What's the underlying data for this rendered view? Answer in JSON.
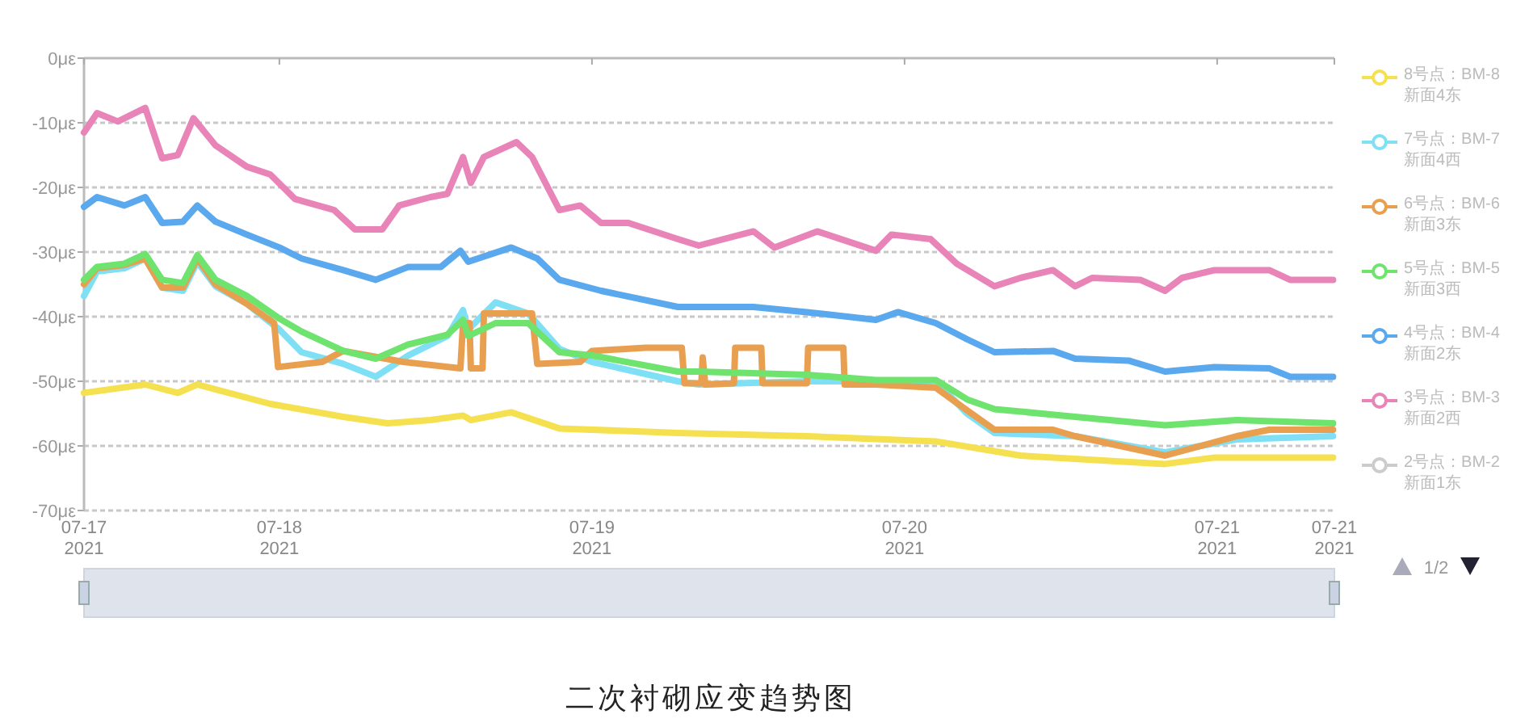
{
  "chart_data": {
    "type": "line",
    "title": "二次衬砌应变趋势图",
    "xlim": [
      "2021-07-17T09:00",
      "2021-07-21T09:00"
    ],
    "xticks": [
      {
        "value": "2021-07-17T09:00",
        "label": "07-17 2021"
      },
      {
        "value": "2021-07-18T00:00",
        "label": "07-18 2021"
      },
      {
        "value": "2021-07-19T00:00",
        "label": "07-19 2021"
      },
      {
        "value": "2021-07-20T00:00",
        "label": "07-20 2021"
      },
      {
        "value": "2021-07-21T00:00",
        "label": "07-21 2021"
      },
      {
        "value": "2021-07-21T09:00",
        "label": "07-21 2021"
      }
    ],
    "ylim": [
      -70,
      0
    ],
    "yticks": [
      {
        "value": 0,
        "label": "0με"
      },
      {
        "value": -10,
        "label": "-10με"
      },
      {
        "value": -20,
        "label": "-20με"
      },
      {
        "value": -30,
        "label": "-30με"
      },
      {
        "value": -40,
        "label": "-40με"
      },
      {
        "value": -50,
        "label": "-50με"
      },
      {
        "value": -60,
        "label": "-60με"
      },
      {
        "value": -70,
        "label": "-70με"
      }
    ],
    "grid": "y",
    "legend": "right",
    "annotations": [
      "1/2"
    ],
    "series": [
      {
        "name": "8号点：BM-8 新面4东",
        "color": "#f5e050",
        "x": [
          "2021-07-17T09:00",
          "2021-07-17T13:42",
          "2021-07-17T16:12",
          "2021-07-17T17:42",
          "2021-07-17T23:18",
          "2021-07-18T04:54",
          "2021-07-18T08:18",
          "2021-07-18T11:36",
          "2021-07-18T14:06",
          "2021-07-18T14:42",
          "2021-07-18T17:48",
          "2021-07-18T21:30",
          "2021-07-19T06:36",
          "2021-07-19T16:30",
          "2021-07-20T02:24",
          "2021-07-20T08:54",
          "2021-07-20T20:00",
          "2021-07-20T23:48",
          "2021-07-21T08:54"
        ],
        "values": [
          -51.8,
          -50.5,
          -51.8,
          -50.5,
          -53.5,
          -55.5,
          -56.5,
          -56,
          -55.3,
          -56,
          -54.8,
          -57.3,
          -58,
          -58.5,
          -59.3,
          -61.5,
          -62.8,
          -61.8,
          -61.8
        ]
      },
      {
        "name": "7号点：BM-7 新面4西",
        "color": "#7fe0f5",
        "x": [
          "2021-07-17T09:00",
          "2021-07-17T10:00",
          "2021-07-17T12:06",
          "2021-07-17T13:42",
          "2021-07-17T15:00",
          "2021-07-17T16:36",
          "2021-07-17T17:42",
          "2021-07-17T19:06",
          "2021-07-17T21:30",
          "2021-07-18T00:00",
          "2021-07-18T01:42",
          "2021-07-18T04:54",
          "2021-07-18T07:24",
          "2021-07-18T09:54",
          "2021-07-18T12:54",
          "2021-07-18T14:06",
          "2021-07-18T14:30",
          "2021-07-18T16:36",
          "2021-07-18T19:06",
          "2021-07-18T21:30",
          "2021-07-19T00:00",
          "2021-07-19T06:36",
          "2021-07-19T08:12",
          "2021-07-19T16:30",
          "2021-07-19T21:48",
          "2021-07-20T02:24",
          "2021-07-20T04:48",
          "2021-07-20T06:54",
          "2021-07-20T13:06",
          "2021-07-20T20:00",
          "2021-07-21T01:30",
          "2021-07-21T08:54"
        ],
        "values": [
          -36.8,
          -33,
          -32.5,
          -31,
          -35.5,
          -36,
          -31.5,
          -35.3,
          -38,
          -42,
          -45.5,
          -47.3,
          -49.3,
          -46,
          -43,
          -39,
          -42,
          -37.8,
          -39.5,
          -45,
          -47,
          -50,
          -50.5,
          -50,
          -50,
          -50,
          -55,
          -58,
          -58.5,
          -61,
          -59,
          -58.5
        ]
      },
      {
        "name": "6号点：BM-6 新面3东",
        "color": "#e8a050",
        "x": [
          "2021-07-17T09:00",
          "2021-07-17T10:00",
          "2021-07-17T12:06",
          "2021-07-17T13:42",
          "2021-07-17T15:00",
          "2021-07-17T16:36",
          "2021-07-17T17:42",
          "2021-07-17T19:06",
          "2021-07-17T21:30",
          "2021-07-17T23:36",
          "2021-07-17T23:54",
          "2021-07-18T03:18",
          "2021-07-18T04:54",
          "2021-07-18T09:30",
          "2021-07-18T13:54",
          "2021-07-18T14:06",
          "2021-07-18T14:36",
          "2021-07-18T14:42",
          "2021-07-18T15:36",
          "2021-07-18T15:42",
          "2021-07-18T19:24",
          "2021-07-18T19:48",
          "2021-07-18T23:06",
          "2021-07-19T00:00",
          "2021-07-19T04:06",
          "2021-07-19T06:54",
          "2021-07-19T07:06",
          "2021-07-19T08:24",
          "2021-07-19T08:30",
          "2021-07-19T08:42",
          "2021-07-19T10:54",
          "2021-07-19T11:00",
          "2021-07-19T13:00",
          "2021-07-19T13:06",
          "2021-07-19T16:30",
          "2021-07-19T16:36",
          "2021-07-19T19:18",
          "2021-07-19T19:24",
          "2021-07-19T21:48",
          "2021-07-20T02:24",
          "2021-07-20T04:48",
          "2021-07-20T06:54",
          "2021-07-20T11:24",
          "2021-07-20T13:06",
          "2021-07-20T20:00",
          "2021-07-21T01:30",
          "2021-07-21T04:00",
          "2021-07-21T08:54"
        ],
        "values": [
          -35,
          -32.5,
          -32,
          -31,
          -35.5,
          -35.5,
          -31,
          -35,
          -38,
          -41,
          -47.8,
          -47,
          -45.3,
          -47,
          -48,
          -41,
          -41,
          -48,
          -48,
          -39.5,
          -39.5,
          -47.3,
          -47,
          -45.3,
          -44.8,
          -44.8,
          -50.3,
          -50.3,
          -46.3,
          -50.5,
          -50.3,
          -44.8,
          -44.8,
          -50.3,
          -50.3,
          -44.8,
          -44.8,
          -50.5,
          -50.5,
          -51,
          -54.5,
          -57.5,
          -57.5,
          -58.5,
          -61.5,
          -58.5,
          -57.5,
          -57.5
        ]
      },
      {
        "name": "5号点：BM-5 新面3西",
        "color": "#6ee36e",
        "x": [
          "2021-07-17T09:00",
          "2021-07-17T10:00",
          "2021-07-17T12:06",
          "2021-07-17T13:42",
          "2021-07-17T15:00",
          "2021-07-17T16:36",
          "2021-07-17T17:42",
          "2021-07-17T19:06",
          "2021-07-17T21:30",
          "2021-07-18T00:00",
          "2021-07-18T01:42",
          "2021-07-18T04:54",
          "2021-07-18T07:24",
          "2021-07-18T09:54",
          "2021-07-18T12:54",
          "2021-07-18T14:06",
          "2021-07-18T14:30",
          "2021-07-18T16:36",
          "2021-07-18T19:06",
          "2021-07-18T21:30",
          "2021-07-19T00:00",
          "2021-07-19T06:36",
          "2021-07-19T08:12",
          "2021-07-19T16:30",
          "2021-07-19T21:48",
          "2021-07-20T02:24",
          "2021-07-20T04:48",
          "2021-07-20T06:54",
          "2021-07-20T13:06",
          "2021-07-20T20:00",
          "2021-07-21T01:30",
          "2021-07-21T08:54"
        ],
        "values": [
          -34.3,
          -32.3,
          -31.8,
          -30.3,
          -34.3,
          -34.8,
          -30.5,
          -34.3,
          -36.8,
          -40.3,
          -42.3,
          -45.3,
          -46.5,
          -44.3,
          -42.8,
          -40.5,
          -43,
          -41,
          -41,
          -45.5,
          -46,
          -48.5,
          -48.5,
          -49,
          -49.8,
          -49.8,
          -52.8,
          -54.3,
          -55.5,
          -56.8,
          -56,
          -56.5
        ]
      },
      {
        "name": "4号点：BM-4 新面2东",
        "color": "#5aa8ee",
        "x": [
          "2021-07-17T09:00",
          "2021-07-17T10:00",
          "2021-07-17T12:06",
          "2021-07-17T13:42",
          "2021-07-17T15:00",
          "2021-07-17T16:36",
          "2021-07-17T17:42",
          "2021-07-17T19:06",
          "2021-07-17T21:30",
          "2021-07-18T00:00",
          "2021-07-18T01:42",
          "2021-07-18T04:54",
          "2021-07-18T07:24",
          "2021-07-18T09:54",
          "2021-07-18T12:24",
          "2021-07-18T13:54",
          "2021-07-18T14:30",
          "2021-07-18T17:48",
          "2021-07-18T19:48",
          "2021-07-18T21:30",
          "2021-07-19T00:42",
          "2021-07-19T06:36",
          "2021-07-19T08:12",
          "2021-07-19T12:24",
          "2021-07-19T16:30",
          "2021-07-19T21:48",
          "2021-07-19T23:30",
          "2021-07-20T02:24",
          "2021-07-20T04:48",
          "2021-07-20T06:54",
          "2021-07-20T11:24",
          "2021-07-20T13:06",
          "2021-07-20T17:12",
          "2021-07-20T20:00",
          "2021-07-20T23:48",
          "2021-07-21T04:00",
          "2021-07-21T05:36",
          "2021-07-21T08:54"
        ],
        "values": [
          -23,
          -21.5,
          -22.8,
          -21.5,
          -25.5,
          -25.3,
          -22.8,
          -25.3,
          -27.3,
          -29.3,
          -31,
          -32.8,
          -34.3,
          -32.3,
          -32.3,
          -29.8,
          -31.5,
          -29.3,
          -31,
          -34.3,
          -36,
          -38.5,
          -38.5,
          -38.5,
          -39.3,
          -40.5,
          -39.3,
          -41,
          -43.5,
          -45.5,
          -45.3,
          -46.5,
          -46.8,
          -48.5,
          -47.8,
          -48,
          -49.3,
          -49.3
        ]
      },
      {
        "name": "3号点：BM-3 新面2西",
        "color": "#e884b8",
        "x": [
          "2021-07-17T09:00",
          "2021-07-17T10:00",
          "2021-07-17T11:36",
          "2021-07-17T13:42",
          "2021-07-17T15:00",
          "2021-07-17T16:12",
          "2021-07-17T17:24",
          "2021-07-17T19:06",
          "2021-07-17T21:30",
          "2021-07-17T23:18",
          "2021-07-18T01:12",
          "2021-07-18T04:12",
          "2021-07-18T05:48",
          "2021-07-18T07:54",
          "2021-07-18T09:12",
          "2021-07-18T11:36",
          "2021-07-18T12:54",
          "2021-07-18T14:06",
          "2021-07-18T14:42",
          "2021-07-18T15:42",
          "2021-07-18T18:12",
          "2021-07-18T19:24",
          "2021-07-18T21:30",
          "2021-07-18T23:06",
          "2021-07-19T00:42",
          "2021-07-19T02:48",
          "2021-07-19T06:36",
          "2021-07-19T08:12",
          "2021-07-19T12:24",
          "2021-07-19T14:00",
          "2021-07-19T17:18",
          "2021-07-19T21:48",
          "2021-07-19T23:00",
          "2021-07-20T02:00",
          "2021-07-20T04:00",
          "2021-07-20T06:54",
          "2021-07-20T08:54",
          "2021-07-20T11:24",
          "2021-07-20T13:06",
          "2021-07-20T14:24",
          "2021-07-20T18:06",
          "2021-07-20T20:00",
          "2021-07-20T21:18",
          "2021-07-20T23:48",
          "2021-07-21T04:00",
          "2021-07-21T05:36",
          "2021-07-21T08:54"
        ],
        "values": [
          -11.5,
          -8.5,
          -9.8,
          -7.7,
          -15.5,
          -15,
          -9.3,
          -13.5,
          -16.8,
          -18,
          -21.8,
          -23.5,
          -26.5,
          -26.5,
          -22.8,
          -21.5,
          -21,
          -15.3,
          -19.3,
          -15.3,
          -13,
          -15.3,
          -23.5,
          -22.8,
          -25.5,
          -25.5,
          -28,
          -29,
          -26.8,
          -29.3,
          -26.8,
          -29.8,
          -27.3,
          -28,
          -31.8,
          -35.3,
          -34,
          -32.8,
          -35.3,
          -34,
          -34.3,
          -36,
          -34,
          -32.8,
          -32.8,
          -34.3,
          -34.3
        ]
      },
      {
        "name": "2号点：BM-2 新面1东",
        "color": "#cccccc"
      }
    ]
  }
}
